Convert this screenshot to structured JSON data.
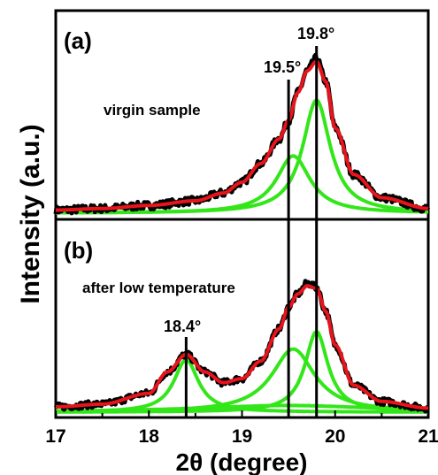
{
  "chart_data": [
    {
      "panel_label": "(a)",
      "type": "line",
      "annotation": "virgin sample",
      "x_range": [
        17,
        21
      ],
      "ylabel": "Intensity (a.u.)",
      "peak_markers": [
        {
          "x": 19.5,
          "label": "19.5°"
        },
        {
          "x": 19.8,
          "label": "19.8°"
        }
      ],
      "series": [
        {
          "role": "measured data",
          "color": "#000000",
          "style": "thick noisy line",
          "x": [
            17.0,
            17.5,
            18.0,
            18.5,
            18.8,
            19.0,
            19.2,
            19.4,
            19.5,
            19.6,
            19.7,
            19.8,
            19.9,
            20.0,
            20.2,
            20.5,
            21.0
          ],
          "y": [
            0.02,
            0.03,
            0.05,
            0.08,
            0.13,
            0.2,
            0.32,
            0.48,
            0.6,
            0.78,
            0.92,
            1.0,
            0.85,
            0.55,
            0.25,
            0.1,
            0.03
          ]
        },
        {
          "role": "fitted curve",
          "color": "#e8141b",
          "style": "thick line",
          "x": [
            17.0,
            17.5,
            18.0,
            18.5,
            18.8,
            19.0,
            19.2,
            19.4,
            19.5,
            19.6,
            19.7,
            19.8,
            19.9,
            20.0,
            20.2,
            20.5,
            21.0
          ],
          "y": [
            0.02,
            0.03,
            0.05,
            0.08,
            0.13,
            0.2,
            0.32,
            0.48,
            0.6,
            0.78,
            0.92,
            0.98,
            0.85,
            0.55,
            0.25,
            0.1,
            0.03
          ]
        },
        {
          "role": "fitted peak component",
          "color": "#33e61a",
          "center": 19.55,
          "height": 0.37,
          "hwhm": 0.22
        },
        {
          "role": "fitted peak component",
          "color": "#33e61a",
          "center": 19.8,
          "height": 0.73,
          "hwhm": 0.18
        }
      ]
    },
    {
      "panel_label": "(b)",
      "type": "line",
      "annotation": "after low temperature",
      "x_range": [
        17,
        21
      ],
      "xlabel": "2θ (degree)",
      "xticks": [
        "17",
        "18",
        "19",
        "20",
        "21"
      ],
      "peak_markers": [
        {
          "x": 18.4,
          "label": "18.4°"
        },
        {
          "x": 19.5,
          "label": ""
        },
        {
          "x": 19.8,
          "label": ""
        }
      ],
      "series": [
        {
          "role": "measured data",
          "color": "#000000",
          "style": "thick noisy line",
          "x": [
            17.0,
            17.5,
            18.0,
            18.2,
            18.4,
            18.6,
            18.8,
            19.0,
            19.2,
            19.4,
            19.5,
            19.6,
            19.7,
            19.8,
            19.9,
            20.0,
            20.2,
            20.5,
            21.0
          ],
          "y": [
            0.04,
            0.06,
            0.14,
            0.3,
            0.43,
            0.3,
            0.22,
            0.25,
            0.38,
            0.62,
            0.78,
            0.88,
            0.96,
            0.93,
            0.75,
            0.5,
            0.2,
            0.08,
            0.03
          ]
        },
        {
          "role": "fitted curve",
          "color": "#e8141b",
          "style": "thick line",
          "x": [
            17.0,
            17.5,
            18.0,
            18.2,
            18.4,
            18.6,
            18.8,
            19.0,
            19.2,
            19.4,
            19.5,
            19.6,
            19.7,
            19.8,
            19.9,
            20.0,
            20.2,
            20.5,
            21.0
          ],
          "y": [
            0.04,
            0.06,
            0.14,
            0.3,
            0.43,
            0.3,
            0.22,
            0.25,
            0.38,
            0.62,
            0.78,
            0.88,
            0.94,
            0.92,
            0.75,
            0.5,
            0.2,
            0.08,
            0.03
          ]
        },
        {
          "role": "fitted peak component",
          "color": "#33e61a",
          "center": 18.4,
          "height": 0.39,
          "hwhm": 0.16
        },
        {
          "role": "fitted peak component",
          "color": "#33e61a",
          "center": 19.55,
          "height": 0.47,
          "hwhm": 0.28
        },
        {
          "role": "fitted peak component",
          "color": "#33e61a",
          "center": 19.8,
          "height": 0.6,
          "hwhm": 0.15
        },
        {
          "role": "fitted peak component",
          "color": "#33e61a",
          "center": 19.5,
          "height": 0.05,
          "hwhm": 1.2
        }
      ]
    }
  ],
  "labels": {
    "a_panel": "(a)",
    "a_note": "virgin sample",
    "a_peak1": "19.5°",
    "a_peak2": "19.8°",
    "b_panel": "(b)",
    "b_note": "after low temperature",
    "b_peak": "18.4°",
    "ylabel": "Intensity (a.u.)",
    "xlabel": "2θ (degree)"
  },
  "colors": {
    "data": "#000000",
    "fit": "#e8141b",
    "component": "#33e61a",
    "frame": "#000000"
  }
}
